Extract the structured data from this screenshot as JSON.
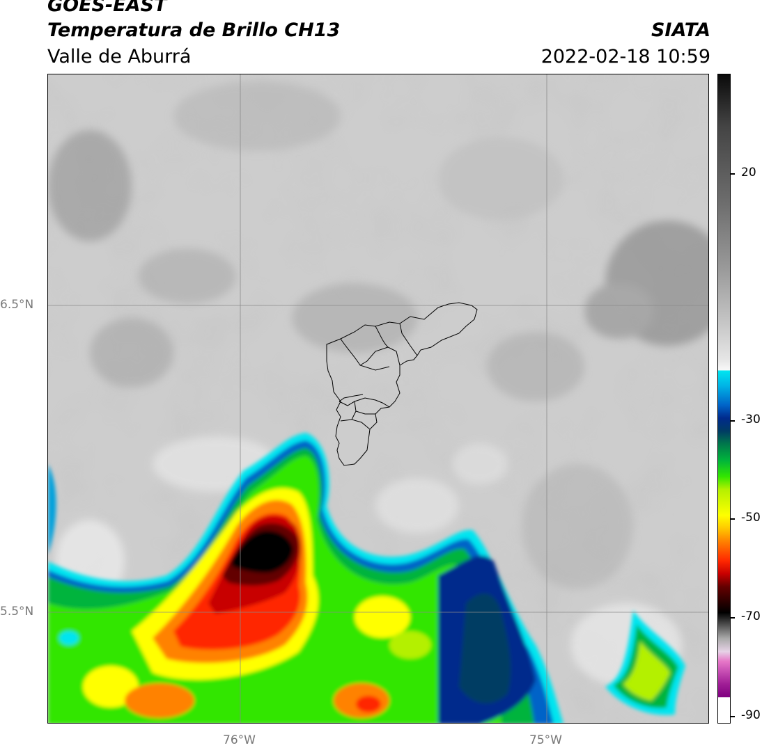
{
  "header": {
    "satellite": "GOES-EAST",
    "product": "Temperatura de Brillo CH13",
    "region": "Valle de Aburrá",
    "agency": "SIATA",
    "datetime": "2022-02-18 10:59"
  },
  "map": {
    "lat_labels": [
      "6.5°N",
      "5.5°N"
    ],
    "lon_labels": [
      "76°W",
      "75°W"
    ],
    "lat_ticks": [
      6.5,
      5.5
    ],
    "lon_ticks": [
      -76,
      -75
    ]
  },
  "colorbar": {
    "tick_labels": [
      "20",
      "-30",
      "-50",
      "-70",
      "-90"
    ],
    "tick_values": [
      20,
      -30,
      -50,
      -70,
      -90
    ],
    "colors": {
      "warm": "#9a9a9a",
      "cold_edge": "#00e5f0",
      "deep": "#002a8c",
      "green": "#00b43c",
      "yellow": "#ffff00",
      "red": "#ff2800",
      "darkest": "#000000",
      "purple": "#800080"
    }
  }
}
